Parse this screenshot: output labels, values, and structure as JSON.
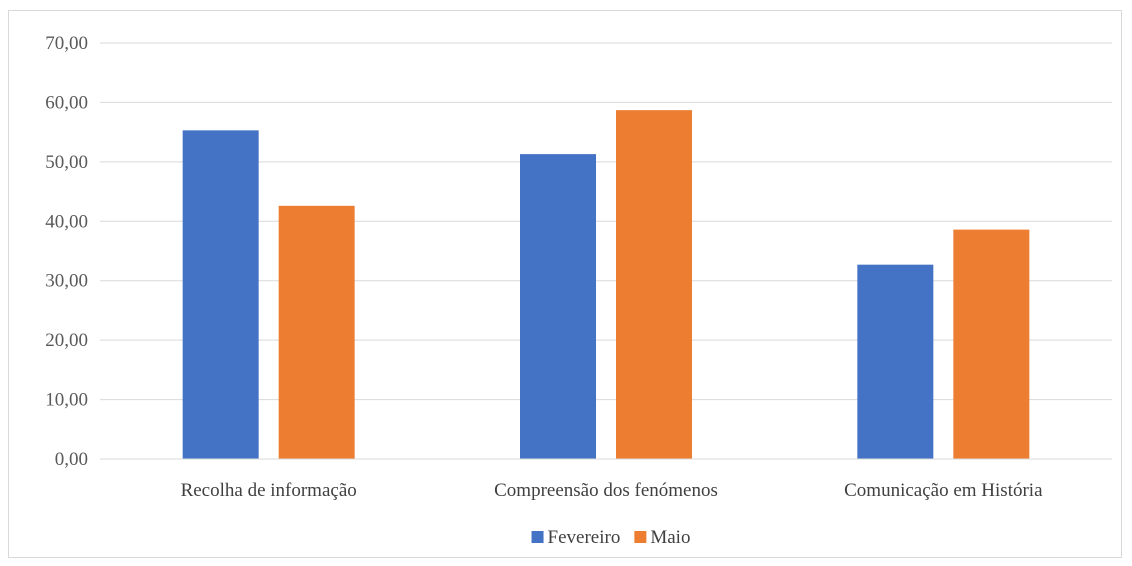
{
  "chart_data": {
    "type": "bar",
    "categories": [
      "Recolha de informação",
      "Compreensão dos fenómenos",
      "Comunicação em História"
    ],
    "series": [
      {
        "name": "Fevereiro",
        "color": "#4472c4",
        "values": [
          55.3,
          51.3,
          32.7
        ]
      },
      {
        "name": "Maio",
        "color": "#ed7d31",
        "values": [
          42.6,
          58.7,
          38.6
        ]
      }
    ],
    "title": "",
    "xlabel": "",
    "ylabel": "",
    "ylim": [
      0,
      70
    ],
    "yticks": [
      0,
      10,
      20,
      30,
      40,
      50,
      60,
      70
    ],
    "ytick_labels": [
      "0,00",
      "10,00",
      "20,00",
      "30,00",
      "40,00",
      "50,00",
      "60,00",
      "70,00"
    ],
    "grid": true,
    "gridline_color": "#d9d9d9",
    "legend_position": "bottom"
  }
}
